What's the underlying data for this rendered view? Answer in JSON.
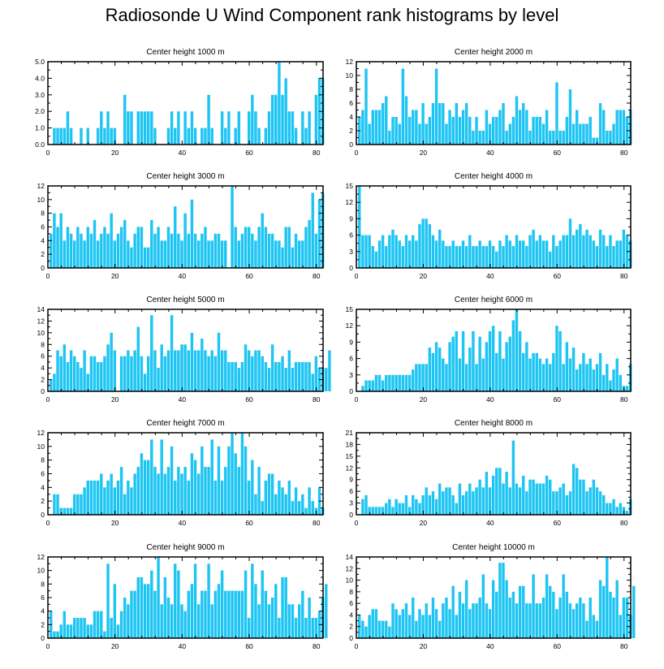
{
  "title": "Radiosonde U Wind Component rank histograms by level",
  "colors": {
    "bar": "#1ec5f3",
    "axis": "#000000"
  },
  "chart_data": [
    {
      "type": "bar",
      "title": "Center height 1000 m",
      "xlim": [
        0,
        82
      ],
      "ylim": [
        0,
        5
      ],
      "xticks": [
        0,
        20,
        40,
        60,
        80
      ],
      "yticks": [
        0,
        1,
        2,
        3,
        4,
        5
      ],
      "ytick_labels": [
        "0.0",
        "1.0",
        "2.0",
        "3.0",
        "4.0",
        "5.0"
      ],
      "values": [
        0,
        1,
        1,
        1,
        1,
        2,
        1,
        0,
        0,
        1,
        0,
        1,
        0,
        0,
        1,
        2,
        1,
        2,
        1,
        1,
        0,
        0,
        3,
        2,
        2,
        0,
        2,
        2,
        2,
        2,
        2,
        1,
        0,
        0,
        0,
        1,
        2,
        1,
        2,
        0,
        2,
        1,
        2,
        1,
        0,
        1,
        1,
        3,
        1,
        0,
        0,
        2,
        1,
        2,
        0,
        1,
        2,
        0,
        0,
        2,
        3,
        2,
        1,
        0,
        1,
        2,
        3,
        3,
        5,
        3,
        4,
        2,
        2,
        1,
        0,
        2,
        1,
        2,
        0,
        3,
        4,
        4
      ]
    },
    {
      "type": "bar",
      "title": "Center height 2000 m",
      "xlim": [
        0,
        82
      ],
      "ylim": [
        0,
        12
      ],
      "xticks": [
        0,
        20,
        40,
        60,
        80
      ],
      "yticks": [
        0,
        2,
        4,
        6,
        8,
        10,
        12
      ],
      "ytick_labels": [
        "0",
        "2",
        "4",
        "6",
        "8",
        "10",
        "12"
      ],
      "values": [
        4,
        5,
        11,
        3,
        5,
        5,
        5,
        6,
        7,
        2,
        4,
        4,
        3,
        11,
        7,
        4,
        5,
        5,
        3,
        6,
        3,
        4,
        6,
        11,
        6,
        6,
        3,
        5,
        4,
        6,
        4,
        5,
        6,
        4,
        2,
        4,
        2,
        2,
        5,
        3,
        4,
        4,
        5,
        6,
        2,
        3,
        4,
        7,
        5,
        6,
        5,
        2,
        4,
        4,
        4,
        3,
        5,
        2,
        2,
        9,
        2,
        2,
        4,
        8,
        3,
        5,
        3,
        3,
        3,
        4,
        1,
        1,
        6,
        5,
        2,
        2,
        3,
        5,
        5,
        5,
        4,
        5
      ]
    },
    {
      "type": "bar",
      "title": "Center height 3000 m",
      "xlim": [
        0,
        82
      ],
      "ylim": [
        0,
        12
      ],
      "xticks": [
        0,
        20,
        40,
        60,
        80
      ],
      "yticks": [
        0,
        2,
        4,
        6,
        8,
        10,
        12
      ],
      "ytick_labels": [
        "0",
        "2",
        "4",
        "6",
        "8",
        "10",
        "12"
      ],
      "values": [
        5,
        8,
        6,
        8,
        4,
        6,
        5,
        4,
        6,
        5,
        4,
        6,
        5,
        7,
        4,
        5,
        6,
        5,
        8,
        4,
        5,
        6,
        7,
        4,
        3,
        5,
        6,
        6,
        3,
        3,
        7,
        5,
        6,
        4,
        4,
        6,
        5,
        9,
        5,
        4,
        8,
        5,
        10,
        5,
        4,
        5,
        6,
        4,
        4,
        5,
        5,
        4,
        4,
        0,
        12,
        6,
        4,
        5,
        6,
        6,
        5,
        4,
        6,
        8,
        6,
        5,
        5,
        4,
        4,
        3,
        6,
        6,
        3,
        5,
        4,
        4,
        6,
        7,
        11,
        5,
        10,
        11
      ]
    },
    {
      "type": "bar",
      "title": "Center height 4000 m",
      "xlim": [
        0,
        82
      ],
      "ylim": [
        0,
        15
      ],
      "xticks": [
        0,
        20,
        40,
        60,
        80
      ],
      "yticks": [
        0,
        3,
        6,
        9,
        12,
        15
      ],
      "ytick_labels": [
        "0",
        "3",
        "6",
        "9",
        "12",
        "15"
      ],
      "values": [
        15,
        6,
        6,
        6,
        4,
        3,
        5,
        6,
        4,
        6,
        7,
        6,
        5,
        4,
        6,
        5,
        6,
        5,
        8,
        9,
        9,
        8,
        6,
        5,
        7,
        5,
        4,
        4,
        5,
        4,
        4,
        5,
        4,
        6,
        4,
        4,
        5,
        4,
        4,
        5,
        4,
        3,
        5,
        4,
        6,
        5,
        4,
        6,
        5,
        5,
        4,
        6,
        7,
        5,
        6,
        5,
        5,
        3,
        6,
        4,
        5,
        6,
        6,
        9,
        6,
        7,
        8,
        6,
        7,
        6,
        5,
        4,
        7,
        6,
        4,
        6,
        4,
        5,
        5,
        7,
        6,
        5
      ]
    },
    {
      "type": "bar",
      "title": "Center height 5000 m",
      "xlim": [
        0,
        82
      ],
      "ylim": [
        0,
        14
      ],
      "xticks": [
        0,
        20,
        40,
        60,
        80
      ],
      "yticks": [
        0,
        2,
        4,
        6,
        8,
        10,
        12,
        14
      ],
      "ytick_labels": [
        "0",
        "2",
        "4",
        "6",
        "8",
        "10",
        "12",
        "14"
      ],
      "values": [
        2,
        3,
        7,
        6,
        8,
        5,
        7,
        6,
        5,
        4,
        7,
        3,
        6,
        6,
        5,
        5,
        6,
        8,
        10,
        7,
        0,
        6,
        6,
        7,
        6,
        7,
        11,
        6,
        3,
        6,
        13,
        7,
        4,
        8,
        6,
        7,
        13,
        7,
        7,
        8,
        8,
        7,
        10,
        7,
        7,
        9,
        7,
        6,
        7,
        6,
        10,
        7,
        7,
        5,
        5,
        5,
        4,
        5,
        8,
        7,
        6,
        7,
        7,
        6,
        5,
        4,
        8,
        5,
        5,
        6,
        4,
        7,
        4,
        5,
        5,
        5,
        5,
        5,
        3,
        6,
        4,
        4,
        4,
        7
      ]
    },
    {
      "type": "bar",
      "title": "Center height 6000 m",
      "xlim": [
        0,
        82
      ],
      "ylim": [
        0,
        15
      ],
      "xticks": [
        0,
        20,
        40,
        60,
        80
      ],
      "yticks": [
        0,
        3,
        6,
        9,
        12,
        15
      ],
      "ytick_labels": [
        "0",
        "3",
        "6",
        "9",
        "12",
        "15"
      ],
      "values": [
        0,
        1,
        2,
        2,
        2,
        3,
        3,
        2,
        3,
        3,
        3,
        3,
        3,
        3,
        3,
        3,
        4,
        5,
        5,
        5,
        5,
        8,
        7,
        9,
        8,
        6,
        5,
        9,
        10,
        11,
        6,
        11,
        5,
        8,
        11,
        5,
        10,
        6,
        9,
        11,
        12,
        7,
        11,
        6,
        9,
        10,
        13,
        15,
        11,
        7,
        9,
        6,
        7,
        7,
        6,
        5,
        6,
        5,
        7,
        12,
        11,
        5,
        9,
        6,
        8,
        4,
        5,
        7,
        5,
        6,
        4,
        5,
        7,
        3,
        5,
        2,
        4,
        6,
        3,
        1,
        1,
        5
      ]
    },
    {
      "type": "bar",
      "title": "Center height 7000 m",
      "xlim": [
        0,
        82
      ],
      "ylim": [
        0,
        12
      ],
      "xticks": [
        0,
        20,
        40,
        60,
        80
      ],
      "yticks": [
        0,
        2,
        4,
        6,
        8,
        10,
        12
      ],
      "ytick_labels": [
        "0",
        "2",
        "4",
        "6",
        "8",
        "10",
        "12"
      ],
      "values": [
        0,
        3,
        3,
        1,
        1,
        1,
        1,
        3,
        3,
        3,
        4,
        5,
        5,
        5,
        5,
        6,
        4,
        5,
        6,
        4,
        5,
        7,
        3,
        5,
        4,
        6,
        7,
        9,
        8,
        8,
        11,
        7,
        6,
        11,
        6,
        7,
        10,
        5,
        7,
        6,
        7,
        5,
        9,
        8,
        6,
        10,
        7,
        7,
        11,
        5,
        10,
        5,
        7,
        10,
        12,
        9,
        7,
        12,
        10,
        5,
        8,
        3,
        7,
        2,
        5,
        6,
        6,
        3,
        5,
        4,
        3,
        5,
        2,
        4,
        2,
        3,
        1,
        4,
        2,
        1,
        4,
        1
      ]
    },
    {
      "type": "bar",
      "title": "Center height 8000 m",
      "xlim": [
        0,
        82
      ],
      "ylim": [
        0,
        21
      ],
      "xticks": [
        0,
        20,
        40,
        60,
        80
      ],
      "yticks": [
        0,
        3,
        6,
        9,
        12,
        15,
        18,
        21
      ],
      "ytick_labels": [
        "0",
        "3",
        "6",
        "9",
        "12",
        "15",
        "18",
        "21"
      ],
      "values": [
        0,
        4,
        5,
        2,
        2,
        2,
        2,
        2,
        3,
        4,
        2,
        4,
        3,
        3,
        5,
        2,
        5,
        4,
        3,
        5,
        7,
        5,
        6,
        4,
        8,
        6,
        7,
        7,
        5,
        3,
        8,
        5,
        6,
        8,
        6,
        7,
        9,
        7,
        11,
        7,
        10,
        12,
        12,
        8,
        11,
        7,
        19,
        8,
        7,
        10,
        6,
        9,
        9,
        8,
        8,
        8,
        10,
        9,
        6,
        6,
        7,
        8,
        5,
        6,
        13,
        12,
        9,
        9,
        6,
        7,
        9,
        7,
        6,
        5,
        3,
        3,
        4,
        2,
        3,
        2,
        1,
        4
      ]
    },
    {
      "type": "bar",
      "title": "Center height 9000 m",
      "xlim": [
        0,
        82
      ],
      "ylim": [
        0,
        12
      ],
      "xticks": [
        0,
        20,
        40,
        60,
        80
      ],
      "yticks": [
        0,
        2,
        4,
        6,
        8,
        10,
        12
      ],
      "ytick_labels": [
        "0",
        "2",
        "4",
        "6",
        "8",
        "10",
        "12"
      ],
      "values": [
        4,
        1,
        1,
        2,
        4,
        2,
        2,
        3,
        3,
        3,
        3,
        2,
        2,
        4,
        4,
        4,
        1,
        11,
        3,
        8,
        2,
        4,
        6,
        5,
        7,
        7,
        9,
        9,
        8,
        8,
        10,
        7,
        12,
        5,
        9,
        6,
        5,
        11,
        10,
        5,
        4,
        7,
        8,
        11,
        5,
        7,
        7,
        11,
        5,
        7,
        8,
        10,
        7,
        7,
        7,
        7,
        7,
        7,
        10,
        3,
        11,
        8,
        5,
        10,
        7,
        5,
        6,
        8,
        3,
        9,
        9,
        5,
        5,
        3,
        5,
        7,
        3,
        6,
        3,
        3,
        4,
        6,
        8
      ]
    },
    {
      "type": "bar",
      "title": "Center height 10000 m",
      "xlim": [
        0,
        82
      ],
      "ylim": [
        0,
        14
      ],
      "xticks": [
        0,
        20,
        40,
        60,
        80
      ],
      "yticks": [
        0,
        2,
        4,
        6,
        8,
        10,
        12,
        14
      ],
      "ytick_labels": [
        "0",
        "2",
        "4",
        "6",
        "8",
        "10",
        "12",
        "14"
      ],
      "values": [
        4,
        3,
        2,
        4,
        5,
        5,
        3,
        3,
        3,
        2,
        6,
        5,
        4,
        5,
        6,
        4,
        7,
        3,
        5,
        4,
        6,
        4,
        7,
        5,
        3,
        6,
        7,
        5,
        9,
        4,
        8,
        6,
        10,
        5,
        6,
        6,
        7,
        11,
        6,
        5,
        10,
        8,
        13,
        13,
        10,
        7,
        8,
        6,
        9,
        9,
        6,
        6,
        11,
        6,
        6,
        7,
        11,
        9,
        8,
        5,
        7,
        11,
        8,
        6,
        5,
        6,
        7,
        6,
        3,
        7,
        4,
        3,
        10,
        9,
        14,
        8,
        7,
        10,
        4,
        7,
        7,
        4,
        9
      ]
    }
  ]
}
